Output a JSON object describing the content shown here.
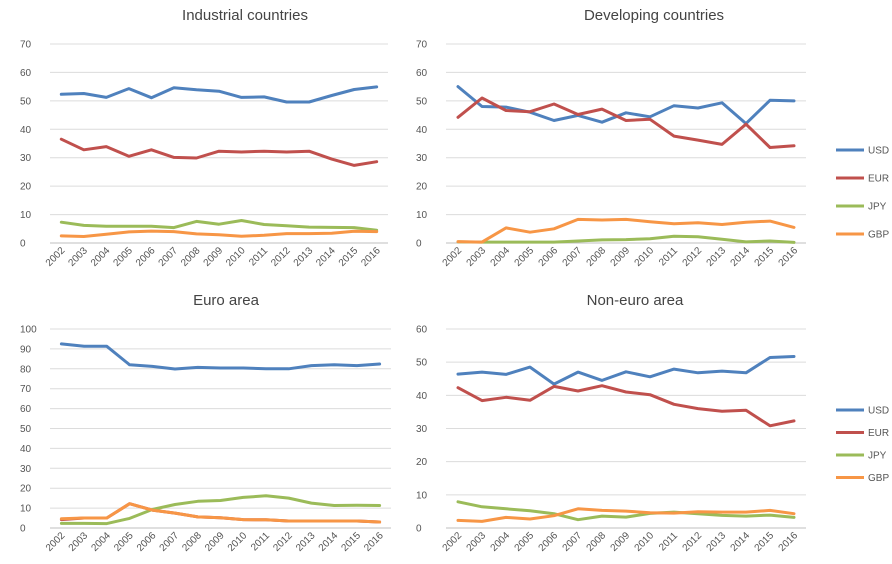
{
  "colors": {
    "USD": "#4f81bd",
    "EUR": "#c0504d",
    "JPY": "#9bbb59",
    "GBP": "#f79646"
  },
  "chart_data": [
    {
      "type": "line",
      "title": "Industrial countries",
      "x": [
        "2002",
        "2003",
        "2004",
        "2005",
        "2006",
        "2007",
        "2008",
        "2009",
        "2010",
        "2011",
        "2012",
        "2013",
        "2014",
        "2015",
        "2016"
      ],
      "ylim": [
        0,
        70
      ],
      "yticks": [
        0,
        10,
        20,
        30,
        40,
        50,
        60,
        70
      ],
      "grid": true,
      "legend": "none",
      "series": [
        {
          "name": "USD",
          "values": [
            52.3,
            52.6,
            51.2,
            54.3,
            51.1,
            54.6,
            53.9,
            53.4,
            51.2,
            51.4,
            49.6,
            49.6,
            51.9,
            54.0,
            54.9
          ]
        },
        {
          "name": "EUR",
          "values": [
            36.5,
            32.8,
            33.9,
            30.5,
            32.8,
            30.1,
            29.9,
            32.3,
            32.0,
            32.3,
            32.0,
            32.3,
            29.5,
            27.3,
            28.6
          ]
        },
        {
          "name": "JPY",
          "values": [
            7.3,
            6.2,
            5.9,
            5.9,
            5.9,
            5.4,
            7.6,
            6.6,
            7.9,
            6.5,
            6.1,
            5.6,
            5.5,
            5.4,
            4.5
          ]
        },
        {
          "name": "GBP",
          "values": [
            2.5,
            2.3,
            3.1,
            3.9,
            4.2,
            4.0,
            3.2,
            2.9,
            2.4,
            2.7,
            3.3,
            3.3,
            3.4,
            4.1,
            4.0
          ]
        }
      ]
    },
    {
      "type": "line",
      "title": "Developing countries",
      "x": [
        "2002",
        "2003",
        "2004",
        "2005",
        "2006",
        "2007",
        "2008",
        "2009",
        "2010",
        "2011",
        "2012",
        "2013",
        "2014",
        "2015",
        "2016"
      ],
      "ylim": [
        0,
        70
      ],
      "yticks": [
        0,
        10,
        20,
        30,
        40,
        50,
        60,
        70
      ],
      "grid": true,
      "legend": "right",
      "series": [
        {
          "name": "USD",
          "values": [
            55.0,
            48.0,
            47.8,
            46.0,
            43.1,
            44.9,
            42.5,
            45.8,
            44.4,
            48.3,
            47.5,
            49.3,
            42.0,
            50.2,
            50.0
          ]
        },
        {
          "name": "EUR",
          "values": [
            44.2,
            51.0,
            46.6,
            46.2,
            48.9,
            45.2,
            47.1,
            43.1,
            43.5,
            37.6,
            36.2,
            34.7,
            41.8,
            33.6,
            34.2
          ]
        },
        {
          "name": "JPY",
          "values": [
            0.4,
            0.3,
            0.3,
            0.3,
            0.3,
            0.7,
            1.1,
            1.2,
            1.5,
            2.4,
            2.2,
            1.3,
            0.4,
            0.7,
            0.2
          ]
        },
        {
          "name": "GBP",
          "values": [
            0.5,
            0.3,
            5.3,
            3.8,
            5.0,
            8.3,
            8.1,
            8.3,
            7.5,
            6.8,
            7.1,
            6.5,
            7.3,
            7.7,
            5.5
          ]
        }
      ]
    },
    {
      "type": "line",
      "title": "Euro area",
      "x": [
        "2002",
        "2003",
        "2004",
        "2005",
        "2006",
        "2007",
        "2008",
        "2009",
        "2010",
        "2011",
        "2012",
        "2013",
        "2014",
        "2015",
        "2016"
      ],
      "ylim": [
        0,
        100
      ],
      "yticks": [
        0,
        10,
        20,
        30,
        40,
        50,
        60,
        70,
        80,
        90,
        100
      ],
      "grid": true,
      "legend": "none",
      "series": [
        {
          "name": "USD",
          "values": [
            92.5,
            91.3,
            91.3,
            82.0,
            81.2,
            79.9,
            80.7,
            80.4,
            80.4,
            80.0,
            80.0,
            81.6,
            82.0,
            81.6,
            82.4
          ]
        },
        {
          "name": "EUR",
          "values": [
            4.2,
            5.0,
            5.0,
            12.2,
            9.0,
            7.5,
            5.6,
            5.2,
            4.2,
            4.1,
            3.5,
            3.5,
            3.5,
            3.5,
            3.0
          ]
        },
        {
          "name": "JPY",
          "values": [
            2.3,
            2.3,
            2.2,
            4.8,
            9.3,
            11.8,
            13.4,
            13.8,
            15.4,
            16.2,
            15.0,
            12.5,
            11.3,
            11.4,
            11.3
          ]
        },
        {
          "name": "GBP",
          "values": [
            4.6,
            5.0,
            5.0,
            12.2,
            9.0,
            7.5,
            5.6,
            5.2,
            4.2,
            4.1,
            3.5,
            3.5,
            3.5,
            3.5,
            3.0
          ]
        }
      ]
    },
    {
      "type": "line",
      "title": "Non-euro area",
      "x": [
        "2002",
        "2003",
        "2004",
        "2005",
        "2006",
        "2007",
        "2008",
        "2009",
        "2010",
        "2011",
        "2012",
        "2013",
        "2014",
        "2015",
        "2016"
      ],
      "ylim": [
        0,
        60
      ],
      "yticks": [
        0,
        10,
        20,
        30,
        40,
        50,
        60
      ],
      "grid": true,
      "legend": "right",
      "series": [
        {
          "name": "USD",
          "values": [
            46.4,
            47.0,
            46.3,
            48.5,
            43.4,
            47.0,
            44.5,
            47.1,
            45.6,
            47.9,
            46.8,
            47.3,
            46.8,
            51.4,
            51.7
          ]
        },
        {
          "name": "EUR",
          "values": [
            42.3,
            38.4,
            39.4,
            38.5,
            42.7,
            41.3,
            42.9,
            41.0,
            40.2,
            37.3,
            36.0,
            35.2,
            35.5,
            30.8,
            32.3
          ]
        },
        {
          "name": "JPY",
          "values": [
            7.9,
            6.4,
            5.8,
            5.2,
            4.3,
            2.5,
            3.6,
            3.3,
            4.4,
            4.8,
            4.3,
            3.8,
            3.6,
            3.9,
            3.2
          ]
        },
        {
          "name": "GBP",
          "values": [
            2.3,
            2.0,
            3.2,
            2.7,
            3.7,
            5.8,
            5.3,
            5.1,
            4.6,
            4.5,
            4.9,
            4.8,
            4.8,
            5.3,
            4.3
          ]
        }
      ]
    }
  ]
}
